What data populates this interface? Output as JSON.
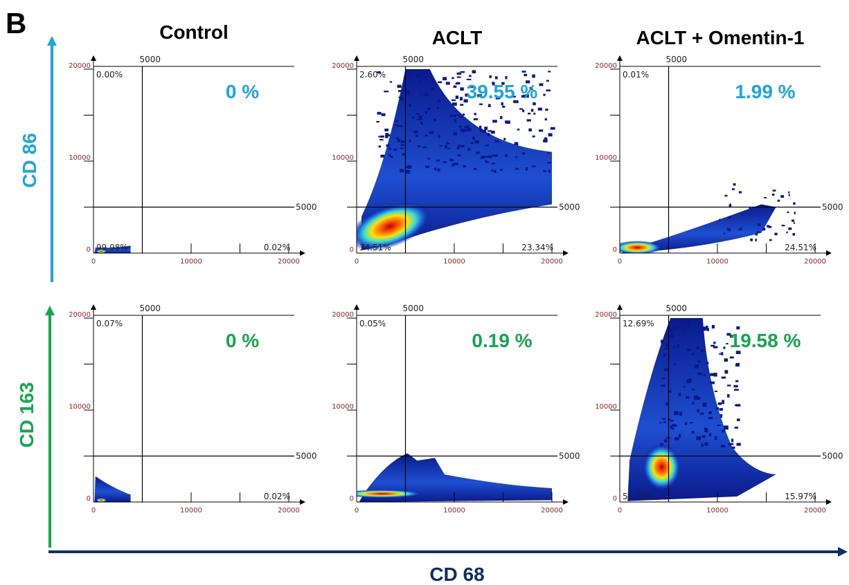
{
  "panel_label": "B",
  "columns": [
    "Control",
    "ACLT",
    "ACLT + Omentin-1"
  ],
  "row_axis_labels": [
    {
      "text": "CD 86",
      "color": "#1aa6e0"
    },
    {
      "text": "CD 163",
      "color": "#14a84e"
    }
  ],
  "bottom_axis_label": {
    "text": "CD 68",
    "color": "#0d2d6b"
  },
  "chart_data": [
    {
      "type": "scatter",
      "row": 0,
      "col": 0,
      "highlight": "0 %",
      "quadrants": {
        "ul": "0.00%",
        "ll": "99.98%",
        "lr": "0.02%",
        "ur": ""
      },
      "gate_label": "5000",
      "ticks_x": [
        "0",
        "10000",
        "20000"
      ],
      "ticks_y": [
        "0",
        "10000",
        "20000"
      ],
      "xlim": [
        0,
        20000
      ],
      "ylim": [
        0,
        20000
      ],
      "density": "low"
    },
    {
      "type": "scatter",
      "row": 0,
      "col": 1,
      "highlight": "39.55 %",
      "quadrants": {
        "ul": "2.60%",
        "ll": "34.51%",
        "lr": "23.34%",
        "ur": ""
      },
      "gate_label": "5000",
      "ticks_x": [
        "0",
        "10000",
        "20000"
      ],
      "ticks_y": [
        "0",
        "10000",
        "20000"
      ],
      "xlim": [
        0,
        20000
      ],
      "ylim": [
        0,
        20000
      ],
      "density": "high"
    },
    {
      "type": "scatter",
      "row": 0,
      "col": 2,
      "highlight": "1.99 %",
      "quadrants": {
        "ul": "0.01%",
        "ll": "",
        "lr": "24.51%",
        "ur": ""
      },
      "gate_label": "5000",
      "ticks_x": [
        "0",
        "10000",
        "20000"
      ],
      "ticks_y": [
        "0",
        "10000",
        "20000"
      ],
      "xlim": [
        0,
        20000
      ],
      "ylim": [
        0,
        20000
      ],
      "density": "medium"
    },
    {
      "type": "scatter",
      "row": 1,
      "col": 0,
      "highlight": "0 %",
      "quadrants": {
        "ul": "0.07%",
        "ll": "",
        "lr": "0.02%",
        "ur": ""
      },
      "gate_label": "5000",
      "ticks_x": [
        "0",
        "10000",
        "20000"
      ],
      "ticks_y": [
        "0",
        "10000",
        "20000"
      ],
      "xlim": [
        0,
        20000
      ],
      "ylim": [
        0,
        20000
      ],
      "density": "low"
    },
    {
      "type": "scatter",
      "row": 1,
      "col": 1,
      "highlight": "0.19 %",
      "quadrants": {
        "ul": "0.05%",
        "ll": "",
        "lr": "",
        "ur": ""
      },
      "gate_label": "5000",
      "ticks_x": [
        "0",
        "10000",
        "20000"
      ],
      "ticks_y": [
        "0",
        "10000",
        "20000"
      ],
      "xlim": [
        0,
        20000
      ],
      "ylim": [
        0,
        20000
      ],
      "density": "flat"
    },
    {
      "type": "scatter",
      "row": 1,
      "col": 2,
      "highlight": "19.58 %",
      "quadrants": {
        "ul": "12.69%",
        "ll": "51.76%",
        "lr": "15.97%",
        "ur": ""
      },
      "gate_label": "5000",
      "ticks_x": [
        "0",
        "10000",
        "20000"
      ],
      "ticks_y": [
        "0",
        "10000",
        "20000"
      ],
      "xlim": [
        0,
        20000
      ],
      "ylim": [
        0,
        20000
      ],
      "density": "tall"
    }
  ]
}
